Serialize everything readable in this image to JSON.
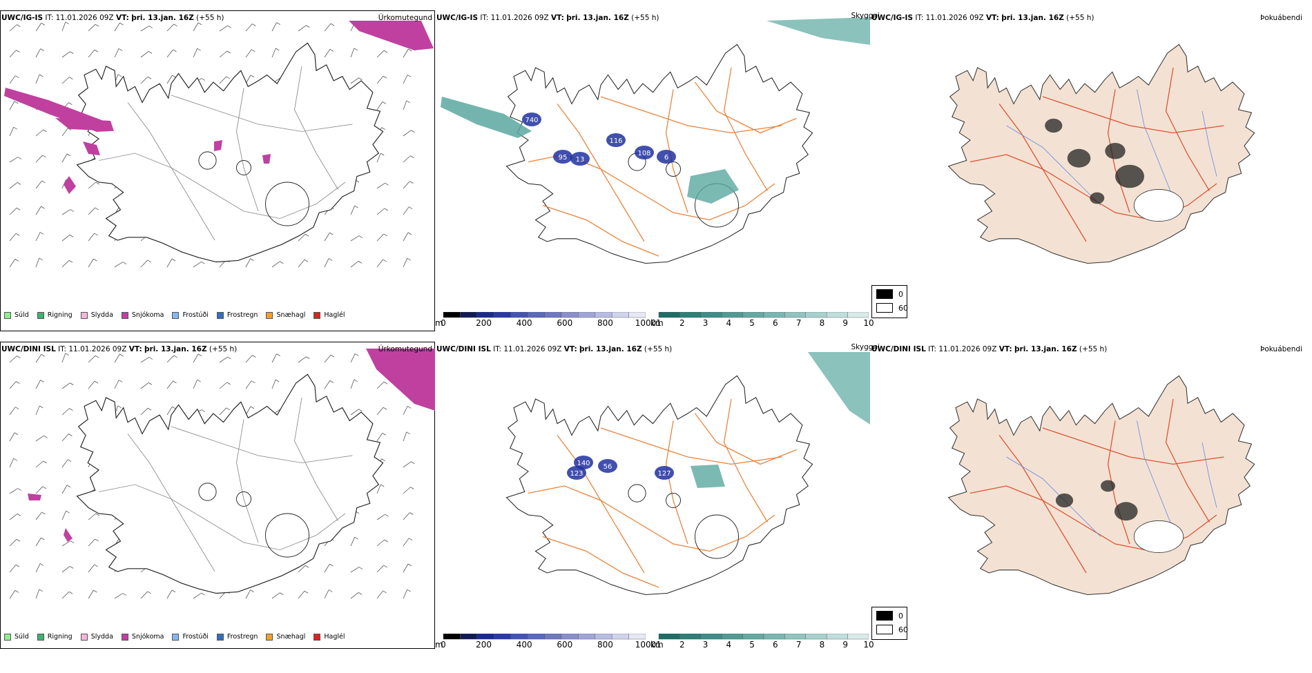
{
  "rows": [
    {
      "precip": {
        "model": "UWC/IG-IS",
        "it_label": "IT:",
        "it_value": "11.01.2026 09Z",
        "vt_label": "VT:",
        "vt_value": "þri. 13.jan. 16Z",
        "lead": "(+55 h)",
        "type": "Úrkomutegund"
      },
      "vis": {
        "model": "UWC/IG-IS",
        "it_label": "IT:",
        "it_value": "11.01.2026 09Z",
        "vt_label": "VT:",
        "vt_value": "þri. 13.jan. 16Z",
        "lead": "(+55 h)",
        "type": "Skyggni",
        "labels": [
          "740",
          "116",
          "95",
          "108",
          "13",
          "6"
        ]
      },
      "fog": {
        "model": "UWC/IG-IS",
        "it_label": "IT:",
        "it_value": "11.01.2026 09Z",
        "vt_label": "VT:",
        "vt_value": "þri. 13.jan. 16Z",
        "lead": "(+55 h)",
        "type": "Þokuábendi"
      }
    },
    {
      "precip": {
        "model": "UWC/DINI ISL",
        "it_label": "IT:",
        "it_value": "11.01.2026 09Z",
        "vt_label": "VT:",
        "vt_value": "þri. 13.jan. 16Z",
        "lead": "(+55 h)",
        "type": "Úrkomutegund"
      },
      "vis": {
        "model": "UWC/DINI ISL",
        "it_label": "IT:",
        "it_value": "11.01.2026 09Z",
        "vt_label": "VT:",
        "vt_value": "þri. 13.jan. 16Z",
        "lead": "(+55 h)",
        "type": "Skyggni",
        "labels": [
          "140",
          "127",
          "123",
          "56"
        ]
      },
      "fog": {
        "model": "UWC/DINI ISL",
        "it_label": "IT:",
        "it_value": "11.01.2026 09Z",
        "vt_label": "VT:",
        "vt_value": "þri. 13.jan. 16Z",
        "lead": "(+55 h)",
        "type": "Þokuábendi"
      }
    }
  ],
  "precip_legend": [
    {
      "label": "Súld",
      "color": "#90ee90"
    },
    {
      "label": "Rigning",
      "color": "#3cb371"
    },
    {
      "label": "Slydda",
      "color": "#f4b6d8"
    },
    {
      "label": "Snjókoma",
      "color": "#c040a0"
    },
    {
      "label": "Frostúði",
      "color": "#87b7ee"
    },
    {
      "label": "Frostregn",
      "color": "#3070c0"
    },
    {
      "label": "Snæhagl",
      "color": "#f0a030"
    },
    {
      "label": "Haglél",
      "color": "#e02020"
    }
  ],
  "ceiling_scale": {
    "unit": "m",
    "ticks": [
      "0",
      "200",
      "400",
      "600",
      "800",
      "1000"
    ],
    "colors": [
      "#000000",
      "#111a55",
      "#1a2a8a",
      "#2a3aa0",
      "#4455b0",
      "#5a6ab8",
      "#7078c0",
      "#8a8fcc",
      "#a0a5d6",
      "#b8bce2",
      "#d0d3ec",
      "#e6e8f5"
    ]
  },
  "vis_scale": {
    "unit": "km",
    "ticks": [
      "1",
      "2",
      "3",
      "4",
      "5",
      "6",
      "7",
      "8",
      "9",
      "10"
    ],
    "colors": [
      "#1e6e66",
      "#2e7f77",
      "#3f8d86",
      "#529b94",
      "#66a9a3",
      "#7bb6b1",
      "#91c3bf",
      "#a8d1cd",
      "#c0dedb",
      "#d8ebe9"
    ]
  },
  "fog_legend": [
    {
      "label": "0",
      "color": "#000000"
    },
    {
      "label": "60",
      "color": "#ffffff"
    }
  ],
  "colors": {
    "land_fog": "#f3e2d3",
    "roads_vis": "#e8823a",
    "roads_fog": "#e05030",
    "rivers": "#6a8ae8",
    "snow": "#c040a0",
    "vis_shade": "#5aa8a0",
    "ceiling": "#2030a0"
  }
}
